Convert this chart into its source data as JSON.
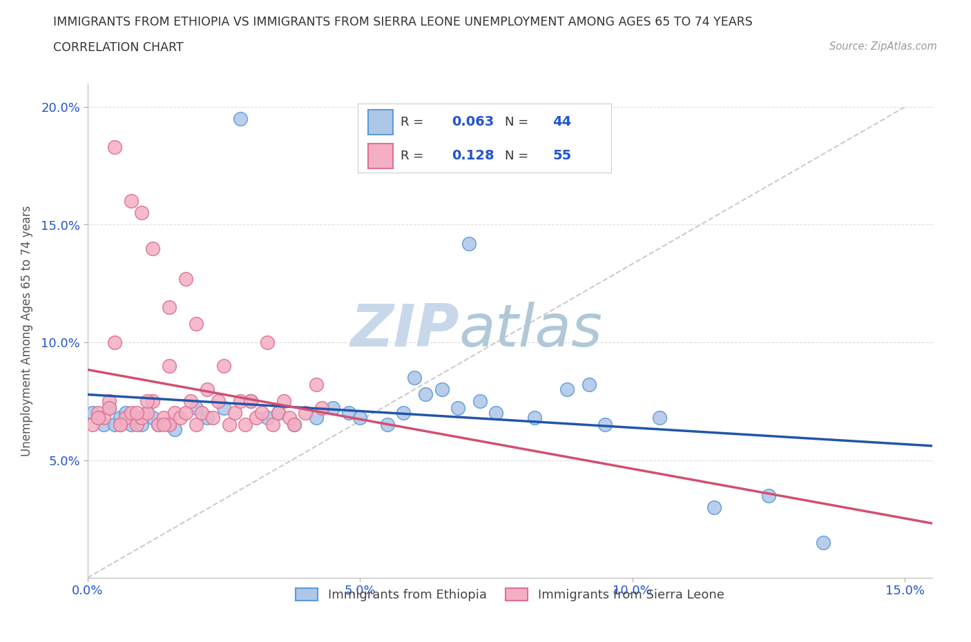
{
  "title_line1": "IMMIGRANTS FROM ETHIOPIA VS IMMIGRANTS FROM SIERRA LEONE UNEMPLOYMENT AMONG AGES 65 TO 74 YEARS",
  "title_line2": "CORRELATION CHART",
  "source_text": "Source: ZipAtlas.com",
  "ylabel": "Unemployment Among Ages 65 to 74 years",
  "xlim": [
    0.0,
    0.155
  ],
  "ylim": [
    0.0,
    0.21
  ],
  "xticks": [
    0.0,
    0.05,
    0.1,
    0.15
  ],
  "xticklabels": [
    "0.0%",
    "5.0%",
    "10.0%",
    "15.0%"
  ],
  "yticks": [
    0.05,
    0.1,
    0.15,
    0.2
  ],
  "yticklabels": [
    "5.0%",
    "10.0%",
    "15.0%",
    "20.0%"
  ],
  "ethiopia_color": "#aec6e8",
  "sierra_leone_color": "#f4afc4",
  "ethiopia_edge_color": "#5b9bd5",
  "sierra_leone_edge_color": "#e07090",
  "ethiopia_line_color": "#2255aa",
  "sierra_leone_line_color": "#d05070",
  "watermark_color": "#c8d8ea",
  "legend_R_color": "#2255cc",
  "R_ethiopia": 0.063,
  "N_ethiopia": 44,
  "R_sierra_leone": 0.128,
  "N_sierra_leone": 55,
  "ethiopia_x": [
    0.001,
    0.002,
    0.003,
    0.004,
    0.005,
    0.006,
    0.007,
    0.008,
    0.009,
    0.01,
    0.011,
    0.012,
    0.013,
    0.015,
    0.016,
    0.02,
    0.022,
    0.025,
    0.028,
    0.03,
    0.033,
    0.035,
    0.038,
    0.042,
    0.045,
    0.048,
    0.05,
    0.055,
    0.058,
    0.06,
    0.062,
    0.065,
    0.068,
    0.07,
    0.072,
    0.075,
    0.082,
    0.088,
    0.092,
    0.095,
    0.105,
    0.115,
    0.125,
    0.135
  ],
  "ethiopia_y": [
    0.07,
    0.068,
    0.065,
    0.072,
    0.065,
    0.068,
    0.07,
    0.065,
    0.068,
    0.065,
    0.07,
    0.068,
    0.065,
    0.065,
    0.063,
    0.072,
    0.068,
    0.072,
    0.195,
    0.075,
    0.068,
    0.07,
    0.065,
    0.068,
    0.072,
    0.07,
    0.068,
    0.065,
    0.07,
    0.085,
    0.078,
    0.08,
    0.072,
    0.142,
    0.075,
    0.07,
    0.068,
    0.08,
    0.082,
    0.065,
    0.068,
    0.03,
    0.035,
    0.015
  ],
  "sierra_leone_x": [
    0.001,
    0.002,
    0.003,
    0.004,
    0.005,
    0.006,
    0.007,
    0.008,
    0.009,
    0.01,
    0.011,
    0.012,
    0.013,
    0.014,
    0.015,
    0.015,
    0.016,
    0.017,
    0.018,
    0.019,
    0.02,
    0.021,
    0.022,
    0.023,
    0.024,
    0.025,
    0.026,
    0.027,
    0.028,
    0.029,
    0.03,
    0.031,
    0.032,
    0.033,
    0.034,
    0.035,
    0.036,
    0.037,
    0.038,
    0.04,
    0.042,
    0.043,
    0.005,
    0.008,
    0.01,
    0.012,
    0.015,
    0.018,
    0.02,
    0.002,
    0.004,
    0.006,
    0.009,
    0.011,
    0.014
  ],
  "sierra_leone_y": [
    0.065,
    0.07,
    0.068,
    0.075,
    0.1,
    0.065,
    0.068,
    0.07,
    0.065,
    0.068,
    0.07,
    0.075,
    0.065,
    0.068,
    0.09,
    0.065,
    0.07,
    0.068,
    0.07,
    0.075,
    0.065,
    0.07,
    0.08,
    0.068,
    0.075,
    0.09,
    0.065,
    0.07,
    0.075,
    0.065,
    0.075,
    0.068,
    0.07,
    0.1,
    0.065,
    0.07,
    0.075,
    0.068,
    0.065,
    0.07,
    0.082,
    0.072,
    0.183,
    0.16,
    0.155,
    0.14,
    0.115,
    0.127,
    0.108,
    0.068,
    0.072,
    0.065,
    0.07,
    0.075,
    0.065
  ],
  "legend_label_ethiopia": "Immigrants from Ethiopia",
  "legend_label_sierra_leone": "Immigrants from Sierra Leone",
  "background_color": "#ffffff",
  "grid_color": "#dddddd"
}
